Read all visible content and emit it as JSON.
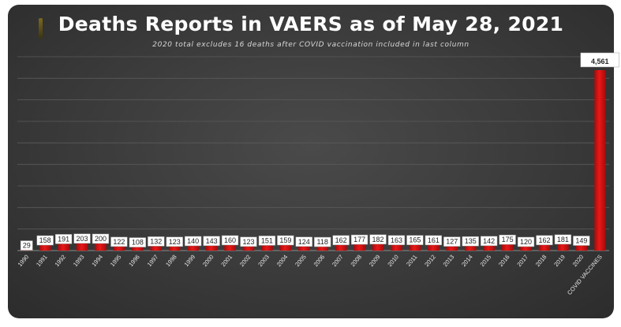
{
  "chart_data": {
    "type": "bar",
    "title": "Deaths Reports in VAERS as of May 28, 2021",
    "subtitle": "2020 total excludes 16 deaths after COVID vaccination included in last column",
    "categories": [
      "1990",
      "1991",
      "1992",
      "1993",
      "1994",
      "1995",
      "1996",
      "1997",
      "1998",
      "1999",
      "2000",
      "2001",
      "2002",
      "2003",
      "2004",
      "2005",
      "2006",
      "2007",
      "2008",
      "2009",
      "2010",
      "2011",
      "2012",
      "2013",
      "2014",
      "2015",
      "2016",
      "2017",
      "2018",
      "2019",
      "2020",
      "COVID VACCINES"
    ],
    "values": [
      29,
      158,
      191,
      203,
      200,
      122,
      108,
      132,
      123,
      140,
      143,
      160,
      123,
      151,
      159,
      124,
      118,
      162,
      177,
      182,
      163,
      165,
      161,
      127,
      135,
      142,
      175,
      120,
      162,
      181,
      149,
      4561
    ],
    "data_labels": [
      "29",
      "158",
      "191",
      "203",
      "200",
      "122",
      "108",
      "132",
      "123",
      "140",
      "143",
      "160",
      "123",
      "151",
      "159",
      "124",
      "118",
      "162",
      "177",
      "182",
      "163",
      "165",
      "161",
      "127",
      "135",
      "142",
      "175",
      "120",
      "162",
      "181",
      "149",
      "4,561"
    ],
    "ylim": [
      0,
      4900
    ],
    "grid": true,
    "legend": "none",
    "colors": {
      "bar": "#e81818",
      "bar_dark": "#a80b0b",
      "panel": "#3d3d3d",
      "title": "#ffffff"
    }
  }
}
